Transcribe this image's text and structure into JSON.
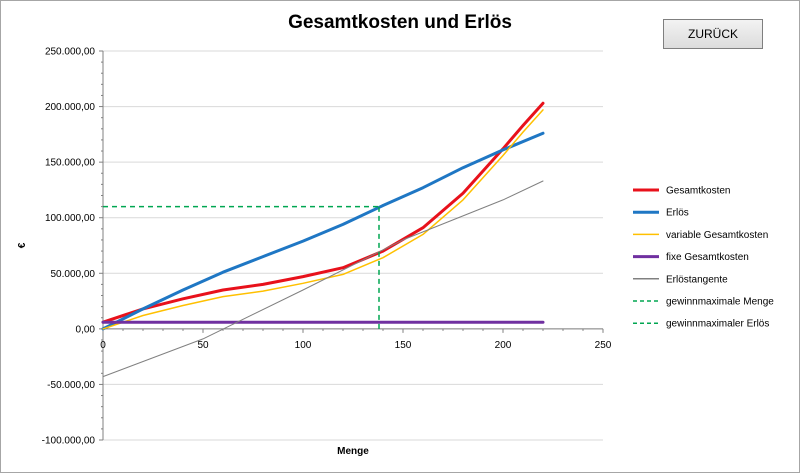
{
  "back_button_label": "ZURÜCK",
  "chart_data": {
    "type": "line",
    "title": "Gesamtkosten und Erlös",
    "xlabel": "Menge",
    "ylabel": "€",
    "xlim": [
      0,
      250
    ],
    "ylim": [
      -100000,
      250000
    ],
    "x_ticks": [
      0,
      50,
      100,
      150,
      200,
      250
    ],
    "x_tick_labels": [
      "0",
      "50",
      "100",
      "150",
      "200",
      "250"
    ],
    "y_ticks": [
      250000,
      200000,
      150000,
      100000,
      50000,
      0,
      -50000,
      -100000
    ],
    "y_tick_labels": [
      "250.000,00",
      "200.000,00",
      "150.000,00",
      "100.000,00",
      "50.000,00",
      "0,00",
      "-50.000,00",
      "-100.000,00"
    ],
    "grid": "horizontal",
    "legend_position": "right",
    "series": [
      {
        "name": "Gesamtkosten",
        "color": "#e8111b",
        "style": "solid",
        "width": 3,
        "x": [
          0,
          20,
          40,
          60,
          80,
          100,
          120,
          140,
          160,
          180,
          200,
          210,
          220
        ],
        "y": [
          6000,
          18000,
          27000,
          35000,
          40000,
          47000,
          55000,
          70000,
          91000,
          122000,
          162000,
          183000,
          203000
        ]
      },
      {
        "name": "Erlös",
        "color": "#1f77c4",
        "style": "solid",
        "width": 3,
        "x": [
          0,
          20,
          40,
          60,
          80,
          100,
          120,
          140,
          160,
          180,
          200,
          220
        ],
        "y": [
          0,
          18000,
          35000,
          51000,
          65000,
          79000,
          94000,
          111000,
          127000,
          145000,
          161000,
          176000
        ]
      },
      {
        "name": "variable Gesamtkosten",
        "color": "#ffc000",
        "style": "solid",
        "width": 1.5,
        "x": [
          0,
          20,
          40,
          60,
          80,
          100,
          120,
          140,
          160,
          180,
          200,
          210,
          220
        ],
        "y": [
          0,
          12000,
          21000,
          29000,
          34000,
          41000,
          49000,
          64000,
          85000,
          116000,
          156000,
          177000,
          197000
        ]
      },
      {
        "name": "fixe Gesamtkosten",
        "color": "#7030a0",
        "style": "solid",
        "width": 3,
        "x": [
          0,
          220
        ],
        "y": [
          6000,
          6000
        ]
      },
      {
        "name": "Erlöstangente",
        "color": "#808080",
        "style": "solid",
        "width": 1,
        "x": [
          0,
          50,
          100,
          150,
          200,
          220
        ],
        "y": [
          -43000,
          -9000,
          35000,
          80000,
          116000,
          133000
        ]
      },
      {
        "name": "gewinnmaximale Menge",
        "color": "#00a651",
        "style": "dashed",
        "width": 1.5,
        "x": [
          138,
          138
        ],
        "y": [
          0,
          110000
        ]
      },
      {
        "name": "gewinnmaximaler Erlös",
        "color": "#00a651",
        "style": "dashed",
        "width": 1.5,
        "x": [
          0,
          138
        ],
        "y": [
          110000,
          110000
        ]
      }
    ]
  }
}
